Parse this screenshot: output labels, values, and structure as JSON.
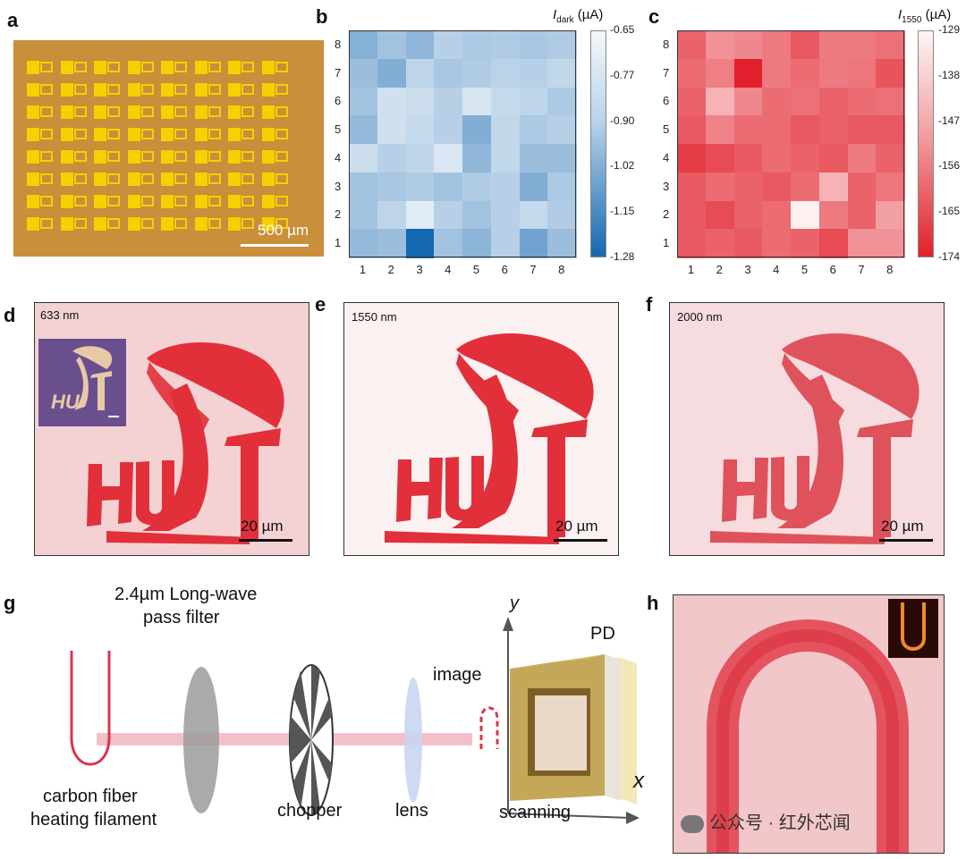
{
  "panels": {
    "a": {
      "label": "a",
      "scalebar": "500 µm",
      "grid_rows": 8,
      "grid_cols": 8
    },
    "b": {
      "label": "b",
      "title_sym": "I",
      "title_sub": "dark",
      "title_unit": " (µA)",
      "colorbar_ticks": [
        "-0.65",
        "-0.77",
        "-0.90",
        "-1.02",
        "-1.15",
        "-1.28"
      ],
      "colors": {
        "low": "#1468b0",
        "high": "#f3f7fb"
      }
    },
    "c": {
      "label": "c",
      "title_sym": "I",
      "title_sub": "1550",
      "title_unit": " (µA)",
      "colorbar_ticks": [
        "-129",
        "-138",
        "-147",
        "-156",
        "-165",
        "-174"
      ],
      "colors": {
        "low": "#e2202b",
        "high": "#fdf5f5"
      }
    },
    "d": {
      "label": "d",
      "wavelength": "633 nm",
      "scalebar": "20 µm",
      "inset_text": "HUST"
    },
    "e": {
      "label": "e",
      "wavelength": "1550 nm",
      "scalebar": "20 µm"
    },
    "f": {
      "label": "f",
      "wavelength": "2000 nm",
      "scalebar": "20 µm"
    },
    "g": {
      "label": "g",
      "filter_label_1": "2.4µm Long-wave",
      "filter_label_2": "pass filter",
      "source_label_1": "carbon fiber",
      "source_label_2": "heating filament",
      "chopper": "chopper",
      "lens": "lens",
      "image": "image",
      "scanning": "scanning",
      "pd": "PD",
      "axis_y": "y",
      "axis_x": "x"
    },
    "h": {
      "label": "h",
      "watermark": "公众号 · 红外芯闻"
    }
  },
  "chart_data": [
    {
      "type": "heatmap",
      "panel": "b",
      "x": [
        1,
        2,
        3,
        4,
        5,
        6,
        7,
        8
      ],
      "y": [
        1,
        2,
        3,
        4,
        5,
        6,
        7,
        8
      ],
      "zlim": [
        -1.28,
        -0.65
      ],
      "values_by_row_y8_to_y1": [
        [
          -0.96,
          -0.88,
          -0.93,
          -0.82,
          -0.85,
          -0.84,
          -0.86,
          -0.84
        ],
        [
          -0.9,
          -0.97,
          -0.8,
          -0.86,
          -0.84,
          -0.81,
          -0.82,
          -0.79
        ],
        [
          -0.88,
          -0.75,
          -0.76,
          -0.82,
          -0.73,
          -0.78,
          -0.8,
          -0.85
        ],
        [
          -0.92,
          -0.75,
          -0.78,
          -0.82,
          -0.97,
          -0.79,
          -0.85,
          -0.82
        ],
        [
          -0.76,
          -0.82,
          -0.8,
          -0.72,
          -0.93,
          -0.79,
          -0.9,
          -0.9
        ],
        [
          -0.88,
          -0.86,
          -0.84,
          -0.88,
          -0.84,
          -0.82,
          -0.97,
          -0.85
        ],
        [
          -0.88,
          -0.8,
          -0.7,
          -0.82,
          -0.88,
          -0.82,
          -0.78,
          -0.84
        ],
        [
          -0.92,
          -0.9,
          -1.28,
          -0.88,
          -0.94,
          -0.82,
          -1.02,
          -0.9
        ]
      ]
    },
    {
      "type": "heatmap",
      "panel": "c",
      "x": [
        1,
        2,
        3,
        4,
        5,
        6,
        7,
        8
      ],
      "y": [
        1,
        2,
        3,
        4,
        5,
        6,
        7,
        8
      ],
      "zlim": [
        -174,
        -129
      ],
      "values_by_row_y8_to_y1": [
        [
          -160,
          -150,
          -152,
          -155,
          -162,
          -155,
          -155,
          -157
        ],
        [
          -158,
          -154,
          -174,
          -155,
          -158,
          -155,
          -156,
          -163
        ],
        [
          -160,
          -143,
          -152,
          -158,
          -157,
          -160,
          -158,
          -157
        ],
        [
          -162,
          -153,
          -158,
          -158,
          -162,
          -160,
          -162,
          -162
        ],
        [
          -168,
          -165,
          -162,
          -158,
          -160,
          -162,
          -155,
          -160
        ],
        [
          -162,
          -158,
          -160,
          -162,
          -158,
          -143,
          -160,
          -156
        ],
        [
          -162,
          -165,
          -160,
          -158,
          -130,
          -155,
          -160,
          -147
        ],
        [
          -162,
          -160,
          -162,
          -158,
          -160,
          -165,
          -150,
          -150
        ]
      ]
    }
  ]
}
